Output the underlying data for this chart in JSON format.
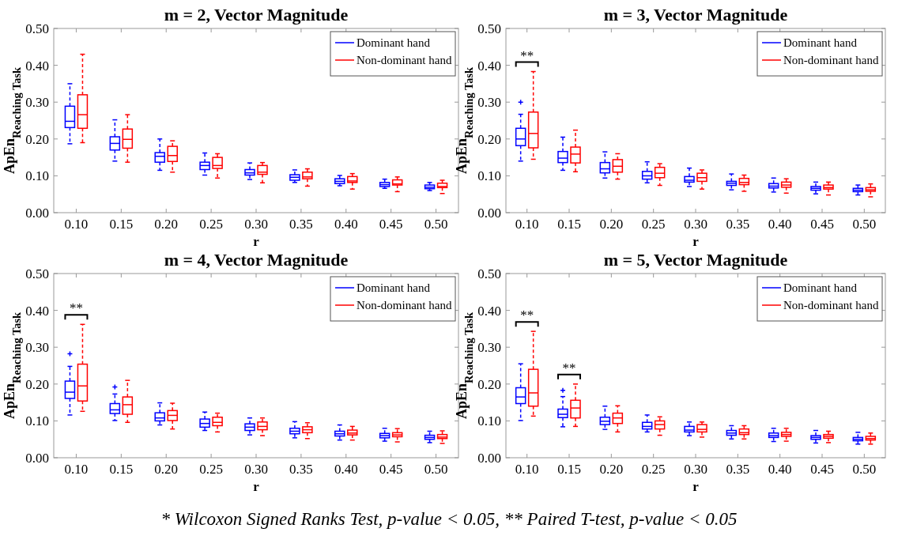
{
  "chart_data": [
    {
      "type": "box",
      "title": "m = 2, Vector Magnitude",
      "xlabel": "r",
      "ylabel": "ApEn$_{Reaching Task}$",
      "categories": [
        "0.10",
        "0.15",
        "0.20",
        "0.25",
        "0.30",
        "0.35",
        "0.40",
        "0.45",
        "0.50"
      ],
      "ylim": [
        0,
        0.5
      ],
      "yticks": [
        {
          "value": 0,
          "label": "0.00"
        },
        {
          "value": 0.1,
          "label": "0.10"
        },
        {
          "value": 0.2,
          "label": "0.20"
        },
        {
          "value": 0.3,
          "label": "0.30"
        },
        {
          "value": 0.4,
          "label": "0.40"
        },
        {
          "value": 0.5,
          "label": "0.50"
        }
      ],
      "legend": "top right",
      "series": [
        {
          "name": "Dominant hand",
          "color": "#0000ff",
          "boxes": [
            {
              "low": 0.187,
              "q1": 0.231,
              "median": 0.248,
              "q3": 0.289,
              "high": 0.35
            },
            {
              "low": 0.14,
              "q1": 0.17,
              "median": 0.188,
              "q3": 0.206,
              "high": 0.252
            },
            {
              "low": 0.115,
              "q1": 0.137,
              "median": 0.153,
              "q3": 0.163,
              "high": 0.2
            },
            {
              "low": 0.102,
              "q1": 0.117,
              "median": 0.128,
              "q3": 0.137,
              "high": 0.162
            },
            {
              "low": 0.09,
              "q1": 0.102,
              "median": 0.108,
              "q3": 0.117,
              "high": 0.135
            },
            {
              "low": 0.082,
              "q1": 0.088,
              "median": 0.096,
              "q3": 0.103,
              "high": 0.116
            },
            {
              "low": 0.073,
              "q1": 0.079,
              "median": 0.085,
              "q3": 0.092,
              "high": 0.101
            },
            {
              "low": 0.066,
              "q1": 0.071,
              "median": 0.076,
              "q3": 0.082,
              "high": 0.091
            },
            {
              "low": 0.06,
              "q1": 0.065,
              "median": 0.069,
              "q3": 0.075,
              "high": 0.082
            }
          ]
        },
        {
          "name": "Non-dominant hand",
          "color": "#ff0000",
          "boxes": [
            {
              "low": 0.19,
              "q1": 0.229,
              "median": 0.266,
              "q3": 0.32,
              "high": 0.43
            },
            {
              "low": 0.137,
              "q1": 0.175,
              "median": 0.199,
              "q3": 0.227,
              "high": 0.266
            },
            {
              "low": 0.11,
              "q1": 0.139,
              "median": 0.155,
              "q3": 0.18,
              "high": 0.195
            },
            {
              "low": 0.094,
              "q1": 0.12,
              "median": 0.128,
              "q3": 0.15,
              "high": 0.16
            },
            {
              "low": 0.081,
              "q1": 0.104,
              "median": 0.11,
              "q3": 0.128,
              "high": 0.136
            },
            {
              "low": 0.072,
              "q1": 0.092,
              "median": 0.097,
              "q3": 0.11,
              "high": 0.119
            },
            {
              "low": 0.064,
              "q1": 0.082,
              "median": 0.086,
              "q3": 0.098,
              "high": 0.106
            },
            {
              "low": 0.057,
              "q1": 0.075,
              "median": 0.078,
              "q3": 0.089,
              "high": 0.097
            },
            {
              "low": 0.052,
              "q1": 0.068,
              "median": 0.071,
              "q3": 0.08,
              "high": 0.088
            }
          ]
        }
      ]
    },
    {
      "type": "box",
      "title": "m = 3, Vector Magnitude",
      "xlabel": "r",
      "ylabel": "ApEn$_{Reaching Task}$",
      "categories": [
        "0.10",
        "0.15",
        "0.20",
        "0.25",
        "0.30",
        "0.35",
        "0.40",
        "0.45",
        "0.50"
      ],
      "ylim": [
        0,
        0.5
      ],
      "yticks": [
        {
          "value": 0,
          "label": "0.00"
        },
        {
          "value": 0.1,
          "label": "0.10"
        },
        {
          "value": 0.2,
          "label": "0.20"
        },
        {
          "value": 0.3,
          "label": "0.30"
        },
        {
          "value": 0.4,
          "label": "0.40"
        },
        {
          "value": 0.5,
          "label": "0.50"
        }
      ],
      "legend": "top right",
      "annotations": [
        "**"
      ],
      "series": [
        {
          "name": "Dominant hand",
          "color": "#0000ff",
          "boxes": [
            {
              "low": 0.14,
              "q1": 0.182,
              "median": 0.2,
              "q3": 0.229,
              "high": 0.267,
              "outliers": [
                0.3
              ]
            },
            {
              "low": 0.115,
              "q1": 0.136,
              "median": 0.148,
              "q3": 0.166,
              "high": 0.205
            },
            {
              "low": 0.094,
              "q1": 0.108,
              "median": 0.119,
              "q3": 0.136,
              "high": 0.165
            },
            {
              "low": 0.081,
              "q1": 0.091,
              "median": 0.1,
              "q3": 0.112,
              "high": 0.138
            },
            {
              "low": 0.071,
              "q1": 0.083,
              "median": 0.088,
              "q3": 0.098,
              "high": 0.121
            },
            {
              "low": 0.062,
              "q1": 0.074,
              "median": 0.08,
              "q3": 0.085,
              "high": 0.105
            },
            {
              "low": 0.056,
              "q1": 0.067,
              "median": 0.072,
              "q3": 0.079,
              "high": 0.094
            },
            {
              "low": 0.051,
              "q1": 0.061,
              "median": 0.066,
              "q3": 0.071,
              "high": 0.083
            },
            {
              "low": 0.048,
              "q1": 0.057,
              "median": 0.061,
              "q3": 0.066,
              "high": 0.075
            }
          ]
        },
        {
          "name": "Non-dominant hand",
          "color": "#ff0000",
          "boxes": [
            {
              "low": 0.145,
              "q1": 0.176,
              "median": 0.215,
              "q3": 0.273,
              "high": 0.383
            },
            {
              "low": 0.111,
              "q1": 0.135,
              "median": 0.159,
              "q3": 0.178,
              "high": 0.224
            },
            {
              "low": 0.091,
              "q1": 0.11,
              "median": 0.126,
              "q3": 0.144,
              "high": 0.16
            },
            {
              "low": 0.074,
              "q1": 0.095,
              "median": 0.107,
              "q3": 0.123,
              "high": 0.133
            },
            {
              "low": 0.064,
              "q1": 0.085,
              "median": 0.095,
              "q3": 0.107,
              "high": 0.116
            },
            {
              "low": 0.058,
              "q1": 0.076,
              "median": 0.082,
              "q3": 0.093,
              "high": 0.102
            },
            {
              "low": 0.053,
              "q1": 0.069,
              "median": 0.075,
              "q3": 0.083,
              "high": 0.092
            },
            {
              "low": 0.048,
              "q1": 0.064,
              "median": 0.068,
              "q3": 0.075,
              "high": 0.083
            },
            {
              "low": 0.043,
              "q1": 0.058,
              "median": 0.062,
              "q3": 0.068,
              "high": 0.078
            }
          ]
        }
      ]
    },
    {
      "type": "box",
      "title": "m = 4, Vector Magnitude",
      "xlabel": "r",
      "ylabel": "ApEn$_{Reaching Task}$",
      "categories": [
        "0.10",
        "0.15",
        "0.20",
        "0.25",
        "0.30",
        "0.35",
        "0.40",
        "0.45",
        "0.50"
      ],
      "ylim": [
        0,
        0.5
      ],
      "yticks": [
        {
          "value": 0,
          "label": "0.00"
        },
        {
          "value": 0.1,
          "label": "0.10"
        },
        {
          "value": 0.2,
          "label": "0.20"
        },
        {
          "value": 0.3,
          "label": "0.30"
        },
        {
          "value": 0.4,
          "label": "0.40"
        },
        {
          "value": 0.5,
          "label": "0.50"
        }
      ],
      "legend": "top right",
      "annotations": [
        "**"
      ],
      "series": [
        {
          "name": "Dominant hand",
          "color": "#0000ff",
          "boxes": [
            {
              "low": 0.116,
              "q1": 0.161,
              "median": 0.178,
              "q3": 0.208,
              "high": 0.248,
              "outliers": [
                0.282
              ]
            },
            {
              "low": 0.101,
              "q1": 0.12,
              "median": 0.13,
              "q3": 0.147,
              "high": 0.173,
              "outliers": [
                0.192
              ]
            },
            {
              "low": 0.089,
              "q1": 0.1,
              "median": 0.108,
              "q3": 0.122,
              "high": 0.149
            },
            {
              "low": 0.074,
              "q1": 0.083,
              "median": 0.093,
              "q3": 0.105,
              "high": 0.124
            },
            {
              "low": 0.062,
              "q1": 0.074,
              "median": 0.083,
              "q3": 0.092,
              "high": 0.108
            },
            {
              "low": 0.054,
              "q1": 0.065,
              "median": 0.072,
              "q3": 0.08,
              "high": 0.098
            },
            {
              "low": 0.048,
              "q1": 0.059,
              "median": 0.065,
              "q3": 0.072,
              "high": 0.089
            },
            {
              "low": 0.045,
              "q1": 0.054,
              "median": 0.06,
              "q3": 0.066,
              "high": 0.08
            },
            {
              "low": 0.041,
              "q1": 0.05,
              "median": 0.055,
              "q3": 0.061,
              "high": 0.072
            }
          ]
        },
        {
          "name": "Non-dominant hand",
          "color": "#ff0000",
          "boxes": [
            {
              "low": 0.126,
              "q1": 0.154,
              "median": 0.195,
              "q3": 0.254,
              "high": 0.362
            },
            {
              "low": 0.096,
              "q1": 0.118,
              "median": 0.144,
              "q3": 0.165,
              "high": 0.21
            },
            {
              "low": 0.078,
              "q1": 0.101,
              "median": 0.115,
              "q3": 0.128,
              "high": 0.148
            },
            {
              "low": 0.07,
              "q1": 0.087,
              "median": 0.096,
              "q3": 0.11,
              "high": 0.121
            },
            {
              "low": 0.06,
              "q1": 0.076,
              "median": 0.085,
              "q3": 0.097,
              "high": 0.108
            },
            {
              "low": 0.052,
              "q1": 0.068,
              "median": 0.076,
              "q3": 0.084,
              "high": 0.095
            },
            {
              "low": 0.048,
              "q1": 0.062,
              "median": 0.067,
              "q3": 0.075,
              "high": 0.085
            },
            {
              "low": 0.043,
              "q1": 0.057,
              "median": 0.062,
              "q3": 0.068,
              "high": 0.079
            },
            {
              "low": 0.039,
              "q1": 0.052,
              "median": 0.056,
              "q3": 0.063,
              "high": 0.073
            }
          ]
        }
      ]
    },
    {
      "type": "box",
      "title": "m = 5, Vector Magnitude",
      "xlabel": "r",
      "ylabel": "ApEn$_{Reaching Task}$",
      "categories": [
        "0.10",
        "0.15",
        "0.20",
        "0.25",
        "0.30",
        "0.35",
        "0.40",
        "0.45",
        "0.50"
      ],
      "ylim": [
        0,
        0.5
      ],
      "yticks": [
        {
          "value": 0,
          "label": "0.00"
        },
        {
          "value": 0.1,
          "label": "0.10"
        },
        {
          "value": 0.2,
          "label": "0.20"
        },
        {
          "value": 0.3,
          "label": "0.30"
        },
        {
          "value": 0.4,
          "label": "0.40"
        },
        {
          "value": 0.5,
          "label": "0.50"
        }
      ],
      "legend": "top right",
      "annotations": [
        "**",
        "**",
        "* Wilcoxon Signed Ranks Test, p-value < 0.05, ** Paired T-test, p-value < 0.05"
      ],
      "series": [
        {
          "name": "Dominant hand",
          "color": "#0000ff",
          "boxes": [
            {
              "low": 0.101,
              "q1": 0.147,
              "median": 0.165,
              "q3": 0.19,
              "high": 0.255
            },
            {
              "low": 0.084,
              "q1": 0.109,
              "median": 0.118,
              "q3": 0.132,
              "high": 0.166,
              "outliers": [
                0.183
              ]
            },
            {
              "low": 0.077,
              "q1": 0.09,
              "median": 0.099,
              "q3": 0.11,
              "high": 0.14
            },
            {
              "low": 0.07,
              "q1": 0.078,
              "median": 0.085,
              "q3": 0.096,
              "high": 0.116
            },
            {
              "low": 0.06,
              "q1": 0.07,
              "median": 0.075,
              "q3": 0.085,
              "high": 0.097
            },
            {
              "low": 0.051,
              "q1": 0.061,
              "median": 0.067,
              "q3": 0.074,
              "high": 0.087
            },
            {
              "low": 0.044,
              "q1": 0.055,
              "median": 0.06,
              "q3": 0.067,
              "high": 0.08
            },
            {
              "low": 0.04,
              "q1": 0.05,
              "median": 0.055,
              "q3": 0.06,
              "high": 0.074
            },
            {
              "low": 0.037,
              "q1": 0.046,
              "median": 0.05,
              "q3": 0.055,
              "high": 0.069
            }
          ]
        },
        {
          "name": "Non-dominant hand",
          "color": "#ff0000",
          "boxes": [
            {
              "low": 0.113,
              "q1": 0.14,
              "median": 0.176,
              "q3": 0.24,
              "high": 0.343
            },
            {
              "low": 0.085,
              "q1": 0.108,
              "median": 0.135,
              "q3": 0.156,
              "high": 0.2
            },
            {
              "low": 0.07,
              "q1": 0.093,
              "median": 0.108,
              "q3": 0.121,
              "high": 0.141
            },
            {
              "low": 0.061,
              "q1": 0.078,
              "median": 0.09,
              "q3": 0.1,
              "high": 0.111
            },
            {
              "low": 0.056,
              "q1": 0.07,
              "median": 0.077,
              "q3": 0.09,
              "high": 0.097
            },
            {
              "low": 0.051,
              "q1": 0.063,
              "median": 0.068,
              "q3": 0.078,
              "high": 0.087
            },
            {
              "low": 0.045,
              "q1": 0.058,
              "median": 0.063,
              "q3": 0.069,
              "high": 0.08
            },
            {
              "low": 0.041,
              "q1": 0.053,
              "median": 0.058,
              "q3": 0.063,
              "high": 0.072
            },
            {
              "low": 0.037,
              "q1": 0.048,
              "median": 0.052,
              "q3": 0.058,
              "high": 0.067
            }
          ]
        }
      ]
    }
  ]
}
